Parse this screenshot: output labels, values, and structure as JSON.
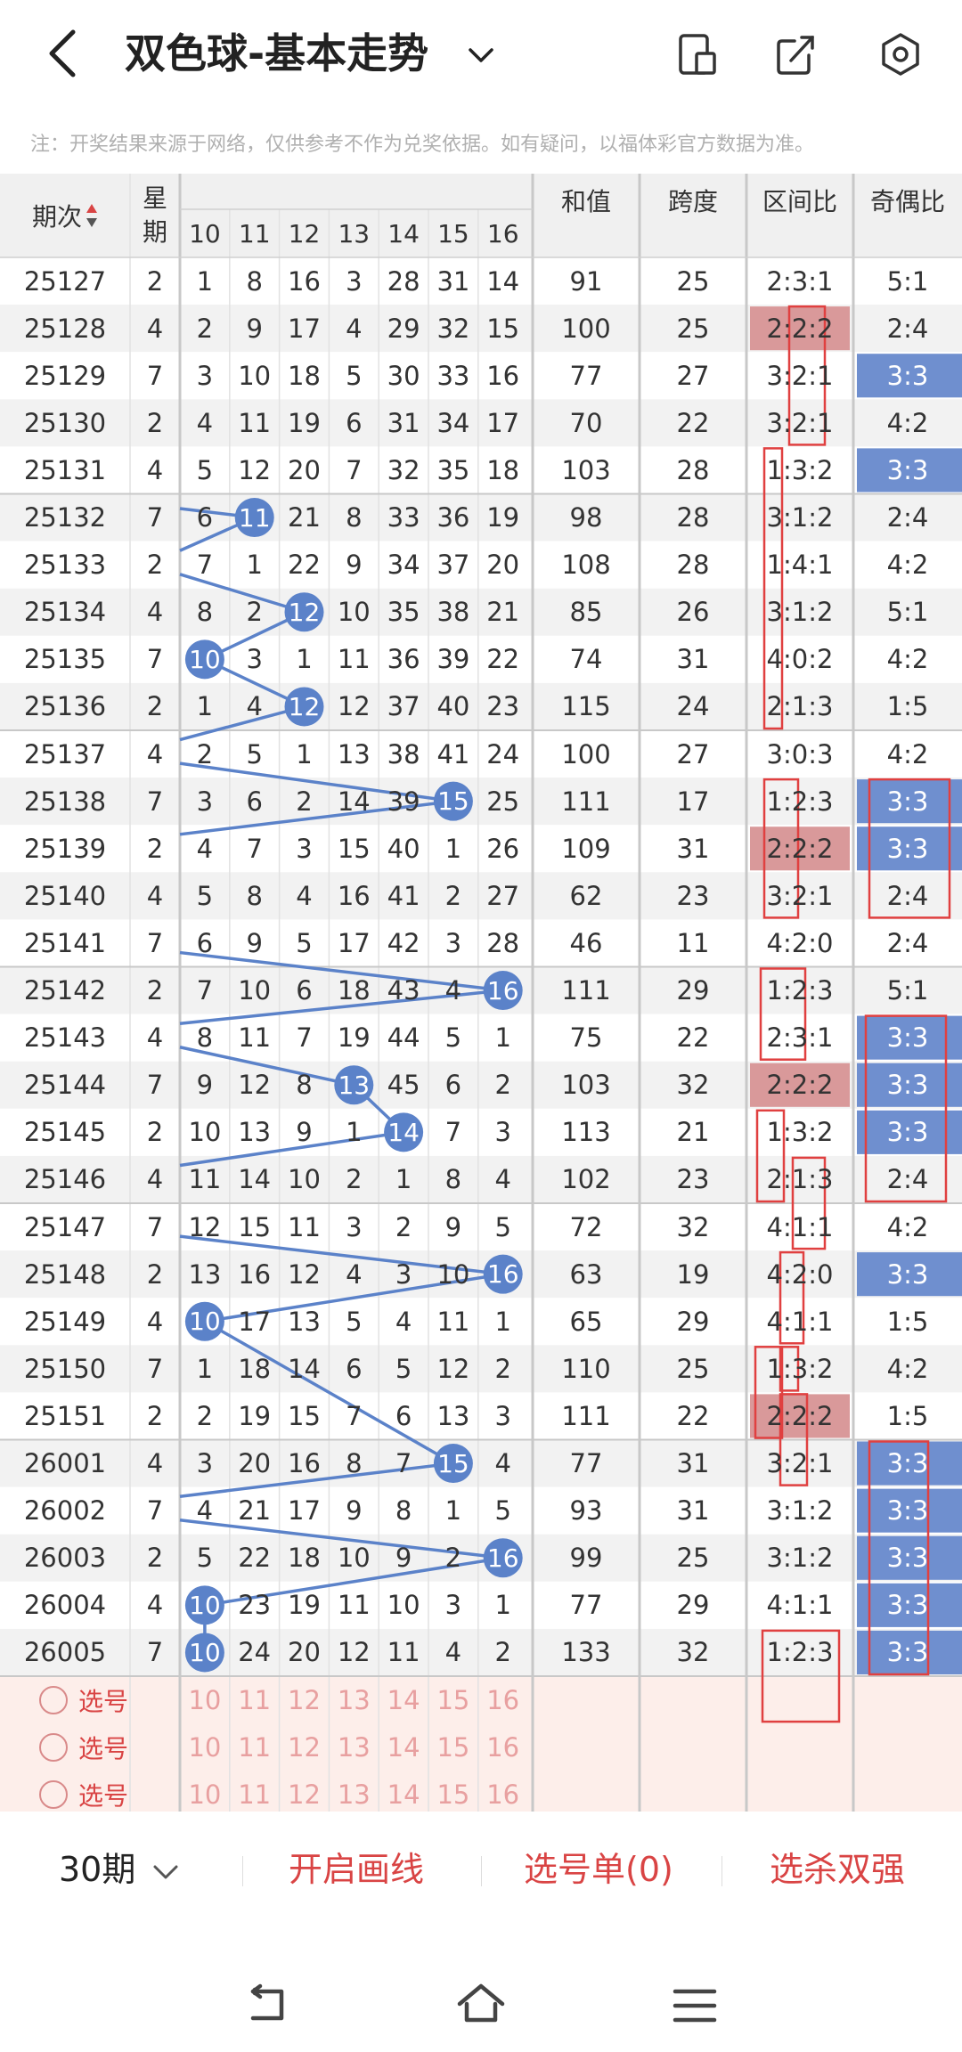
{
  "header": {
    "title": "双色球-基本走势",
    "back_icon": "chevron-left-icon",
    "dropdown_icon": "chevron-down-icon",
    "icons": [
      "phone-pad-icon",
      "share-icon",
      "settings-icon"
    ]
  },
  "notice": "注：开奖结果来源于网络，仅供参考不作为兑奖依据。如有疑问，以福体彩官方数据为准。",
  "table": {
    "headers": {
      "period": "期次",
      "weekday": "星期",
      "sum": "和值",
      "span": "跨度",
      "zone_ratio": "区间比",
      "odd_even": "奇偶比"
    },
    "ball_columns": [
      "10",
      "11",
      "12",
      "13",
      "14",
      "15",
      "16"
    ],
    "rows": [
      {
        "period": "25127",
        "weekday": "2",
        "cells": [
          "1",
          "8",
          "16",
          "3",
          "28",
          "31",
          "14"
        ],
        "hit": null,
        "sum": "91",
        "span": "25",
        "zone": "2:3:1",
        "oe": "5:1"
      },
      {
        "period": "25128",
        "weekday": "4",
        "cells": [
          "2",
          "9",
          "17",
          "4",
          "29",
          "32",
          "15"
        ],
        "hit": null,
        "sum": "100",
        "span": "25",
        "zone": "2:2:2",
        "oe": "2:4"
      },
      {
        "period": "25129",
        "weekday": "7",
        "cells": [
          "3",
          "10",
          "18",
          "5",
          "30",
          "33",
          "16"
        ],
        "hit": null,
        "sum": "77",
        "span": "27",
        "zone": "3:2:1",
        "oe": "3:3"
      },
      {
        "period": "25130",
        "weekday": "2",
        "cells": [
          "4",
          "11",
          "19",
          "6",
          "31",
          "34",
          "17"
        ],
        "hit": null,
        "sum": "70",
        "span": "22",
        "zone": "3:2:1",
        "oe": "4:2"
      },
      {
        "period": "25131",
        "weekday": "4",
        "cells": [
          "5",
          "12",
          "20",
          "7",
          "32",
          "35",
          "18"
        ],
        "hit": null,
        "sum": "103",
        "span": "28",
        "zone": "1:3:2",
        "oe": "3:3"
      },
      {
        "period": "25132",
        "weekday": "7",
        "cells": [
          "6",
          "11",
          "21",
          "8",
          "33",
          "36",
          "19"
        ],
        "hit": 1,
        "sum": "98",
        "span": "28",
        "zone": "3:1:2",
        "oe": "2:4"
      },
      {
        "period": "25133",
        "weekday": "2",
        "cells": [
          "7",
          "1",
          "22",
          "9",
          "34",
          "37",
          "20"
        ],
        "hit": null,
        "sum": "108",
        "span": "28",
        "zone": "1:4:1",
        "oe": "4:2"
      },
      {
        "period": "25134",
        "weekday": "4",
        "cells": [
          "8",
          "2",
          "12",
          "10",
          "35",
          "38",
          "21"
        ],
        "hit": 2,
        "sum": "85",
        "span": "26",
        "zone": "3:1:2",
        "oe": "5:1"
      },
      {
        "period": "25135",
        "weekday": "7",
        "cells": [
          "10",
          "3",
          "1",
          "11",
          "36",
          "39",
          "22"
        ],
        "hit": 0,
        "sum": "74",
        "span": "31",
        "zone": "4:0:2",
        "oe": "4:2"
      },
      {
        "period": "25136",
        "weekday": "2",
        "cells": [
          "1",
          "4",
          "12",
          "12",
          "37",
          "40",
          "23"
        ],
        "hit": 2,
        "sum": "115",
        "span": "24",
        "zone": "2:1:3",
        "oe": "1:5"
      },
      {
        "period": "25137",
        "weekday": "4",
        "cells": [
          "2",
          "5",
          "1",
          "13",
          "38",
          "41",
          "24"
        ],
        "hit": null,
        "sum": "100",
        "span": "27",
        "zone": "3:0:3",
        "oe": "4:2"
      },
      {
        "period": "25138",
        "weekday": "7",
        "cells": [
          "3",
          "6",
          "2",
          "14",
          "39",
          "15",
          "25"
        ],
        "hit": 5,
        "sum": "111",
        "span": "17",
        "zone": "1:2:3",
        "oe": "3:3"
      },
      {
        "period": "25139",
        "weekday": "2",
        "cells": [
          "4",
          "7",
          "3",
          "15",
          "40",
          "1",
          "26"
        ],
        "hit": null,
        "sum": "109",
        "span": "31",
        "zone": "2:2:2",
        "oe": "3:3"
      },
      {
        "period": "25140",
        "weekday": "4",
        "cells": [
          "5",
          "8",
          "4",
          "16",
          "41",
          "2",
          "27"
        ],
        "hit": null,
        "sum": "62",
        "span": "23",
        "zone": "3:2:1",
        "oe": "2:4"
      },
      {
        "period": "25141",
        "weekday": "7",
        "cells": [
          "6",
          "9",
          "5",
          "17",
          "42",
          "3",
          "28"
        ],
        "hit": null,
        "sum": "46",
        "span": "11",
        "zone": "4:2:0",
        "oe": "2:4"
      },
      {
        "period": "25142",
        "weekday": "2",
        "cells": [
          "7",
          "10",
          "6",
          "18",
          "43",
          "4",
          "16"
        ],
        "hit": 6,
        "sum": "111",
        "span": "29",
        "zone": "1:2:3",
        "oe": "5:1"
      },
      {
        "period": "25143",
        "weekday": "4",
        "cells": [
          "8",
          "11",
          "7",
          "19",
          "44",
          "5",
          "1"
        ],
        "hit": null,
        "sum": "75",
        "span": "22",
        "zone": "2:3:1",
        "oe": "3:3"
      },
      {
        "period": "25144",
        "weekday": "7",
        "cells": [
          "9",
          "12",
          "8",
          "13",
          "45",
          "6",
          "2"
        ],
        "hit": 3,
        "sum": "103",
        "span": "32",
        "zone": "2:2:2",
        "oe": "3:3"
      },
      {
        "period": "25145",
        "weekday": "2",
        "cells": [
          "10",
          "13",
          "9",
          "1",
          "14",
          "7",
          "3"
        ],
        "hit": 4,
        "sum": "113",
        "span": "21",
        "zone": "1:3:2",
        "oe": "3:3"
      },
      {
        "period": "25146",
        "weekday": "4",
        "cells": [
          "11",
          "14",
          "10",
          "2",
          "1",
          "8",
          "4"
        ],
        "hit": null,
        "sum": "102",
        "span": "23",
        "zone": "2:1:3",
        "oe": "2:4"
      },
      {
        "period": "25147",
        "weekday": "7",
        "cells": [
          "12",
          "15",
          "11",
          "3",
          "2",
          "9",
          "5"
        ],
        "hit": null,
        "sum": "72",
        "span": "32",
        "zone": "4:1:1",
        "oe": "4:2"
      },
      {
        "period": "25148",
        "weekday": "2",
        "cells": [
          "13",
          "16",
          "12",
          "4",
          "3",
          "10",
          "16"
        ],
        "hit": 6,
        "sum": "63",
        "span": "19",
        "zone": "4:2:0",
        "oe": "3:3"
      },
      {
        "period": "25149",
        "weekday": "4",
        "cells": [
          "10",
          "17",
          "13",
          "5",
          "4",
          "11",
          "1"
        ],
        "hit": 0,
        "sum": "65",
        "span": "29",
        "zone": "4:1:1",
        "oe": "1:5"
      },
      {
        "period": "25150",
        "weekday": "7",
        "cells": [
          "1",
          "18",
          "14",
          "6",
          "5",
          "12",
          "2"
        ],
        "hit": null,
        "sum": "110",
        "span": "25",
        "zone": "1:3:2",
        "oe": "4:2"
      },
      {
        "period": "25151",
        "weekday": "2",
        "cells": [
          "2",
          "19",
          "15",
          "7",
          "6",
          "13",
          "3"
        ],
        "hit": null,
        "sum": "111",
        "span": "22",
        "zone": "2:2:2",
        "oe": "1:5"
      },
      {
        "period": "26001",
        "weekday": "4",
        "cells": [
          "3",
          "20",
          "16",
          "8",
          "7",
          "15",
          "4"
        ],
        "hit": 5,
        "sum": "77",
        "span": "31",
        "zone": "3:2:1",
        "oe": "3:3"
      },
      {
        "period": "26002",
        "weekday": "7",
        "cells": [
          "4",
          "21",
          "17",
          "9",
          "8",
          "1",
          "5"
        ],
        "hit": null,
        "sum": "93",
        "span": "31",
        "zone": "3:1:2",
        "oe": "3:3"
      },
      {
        "period": "26003",
        "weekday": "2",
        "cells": [
          "5",
          "22",
          "18",
          "10",
          "9",
          "2",
          "16"
        ],
        "hit": 6,
        "sum": "99",
        "span": "25",
        "zone": "3:1:2",
        "oe": "3:3"
      },
      {
        "period": "26004",
        "weekday": "4",
        "cells": [
          "10",
          "23",
          "19",
          "11",
          "10",
          "3",
          "1"
        ],
        "hit": 0,
        "sum": "77",
        "span": "29",
        "zone": "4:1:1",
        "oe": "3:3"
      },
      {
        "period": "26005",
        "weekday": "7",
        "cells": [
          "10",
          "24",
          "20",
          "12",
          "11",
          "4",
          "2"
        ],
        "hit": 0,
        "sum": "133",
        "span": "32",
        "zone": "1:2:3",
        "oe": "3:3"
      }
    ],
    "select_rows": [
      {
        "label": "选号",
        "numbers": [
          "10",
          "11",
          "12",
          "13",
          "14",
          "15",
          "16"
        ]
      },
      {
        "label": "选号",
        "numbers": [
          "10",
          "11",
          "12",
          "13",
          "14",
          "15",
          "16"
        ]
      },
      {
        "label": "选号",
        "numbers": [
          "10",
          "11",
          "12",
          "13",
          "14",
          "15",
          "16"
        ]
      }
    ]
  },
  "highlights": {
    "zone_pink_rows": [
      1,
      12,
      17,
      24
    ],
    "odd_even_blue_rows": [
      2,
      4,
      11,
      12,
      16,
      17,
      18,
      21,
      25,
      26,
      27,
      28,
      29
    ]
  },
  "footer": {
    "period_select": "30期",
    "draw_line": "开启画线",
    "pick_list": "选号单(0)",
    "filter": "选杀双强"
  },
  "navbar": {
    "icons": [
      "back-nav-icon",
      "home-nav-icon",
      "menu-nav-icon"
    ]
  },
  "colors": {
    "ball_blue": "#5b82c9",
    "accent_red": "#d94444",
    "pink_highlight": "#d9999a",
    "blue_highlight": "#6f8fcf",
    "select_bg": "#fdeeea",
    "header_bg": "#f0f0f0"
  }
}
